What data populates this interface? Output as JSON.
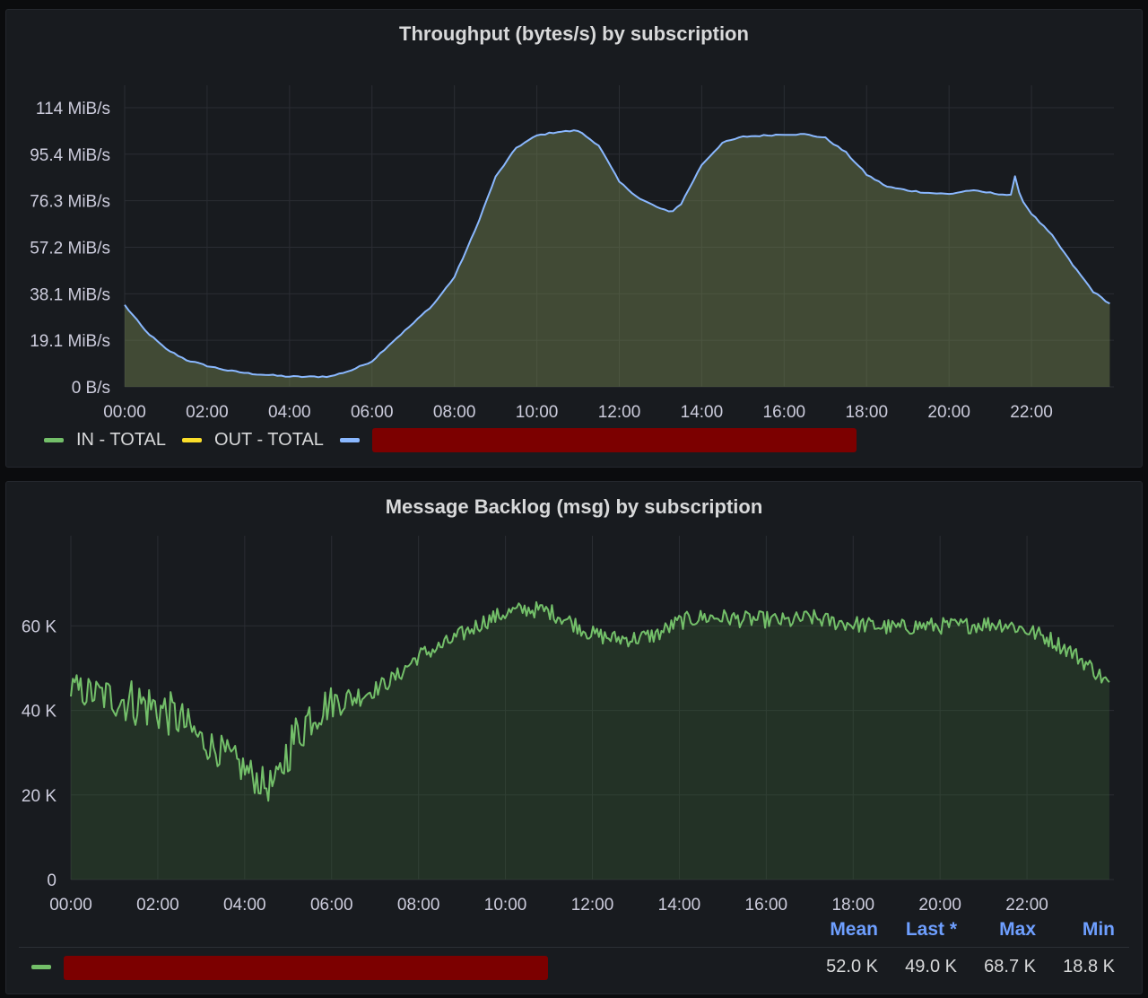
{
  "panels": [
    {
      "title": "Throughput (bytes/s) by subscription",
      "legend": [
        {
          "label": "IN - TOTAL",
          "color": "#73bf69"
        },
        {
          "label": "OUT - TOTAL",
          "color": "#fade2a"
        },
        {
          "label": "",
          "color": "#8ab8ff",
          "redacted": true
        }
      ]
    },
    {
      "title": "Message Backlog (msg) by subscription",
      "stats_headers": [
        "Mean",
        "Last *",
        "Max",
        "Min"
      ],
      "legend_row": {
        "color": "#73bf69",
        "redacted": true,
        "mean": "52.0 K",
        "last": "49.0 K",
        "max": "68.7 K",
        "min": "18.8 K"
      }
    }
  ],
  "chart_data": [
    {
      "type": "area",
      "title": "Throughput (bytes/s) by subscription",
      "xlabel": "",
      "ylabel": "",
      "x_ticks": [
        "00:00",
        "02:00",
        "04:00",
        "06:00",
        "08:00",
        "10:00",
        "12:00",
        "14:00",
        "16:00",
        "18:00",
        "20:00",
        "22:00"
      ],
      "y_ticks": [
        "0 B/s",
        "19.1 MiB/s",
        "38.1 MiB/s",
        "57.2 MiB/s",
        "76.3 MiB/s",
        "95.4 MiB/s",
        "114 MiB/s"
      ],
      "ylim": [
        0,
        114.4
      ],
      "y_unit": "MiB/s",
      "grid": true,
      "legend_position": "bottom-left",
      "series": [
        {
          "label": "(redacted)",
          "color": "#8ab8ff",
          "x_hours": [
            0,
            0.5,
            1,
            1.5,
            2,
            2.5,
            3,
            3.5,
            4,
            4.5,
            5,
            5.5,
            6,
            6.5,
            7,
            7.5,
            8,
            8.5,
            9,
            9.5,
            10,
            10.5,
            11,
            11.5,
            12,
            12.5,
            13,
            13.25,
            13.5,
            14,
            14.5,
            15,
            15.5,
            16,
            16.5,
            17,
            17.5,
            18,
            18.5,
            19,
            19.5,
            20,
            20.5,
            21,
            21.5,
            21.6,
            21.75,
            22,
            22.5,
            23,
            23.5,
            23.9
          ],
          "values": [
            33.5,
            23,
            15.5,
            11,
            8.6,
            6.7,
            5.5,
            4.8,
            4.2,
            4.1,
            4.3,
            6.8,
            10.5,
            18.5,
            26,
            34,
            45,
            64,
            86,
            98,
            103,
            104.5,
            105,
            99,
            84,
            77,
            73,
            71.5,
            75,
            91,
            100,
            102.5,
            103,
            103.5,
            103.5,
            102,
            96,
            87,
            82,
            80.5,
            79.5,
            79,
            80.5,
            79.5,
            78.5,
            86,
            77,
            71,
            62,
            50,
            39,
            34
          ]
        }
      ]
    },
    {
      "type": "area",
      "title": "Message Backlog (msg) by subscription",
      "xlabel": "",
      "ylabel": "",
      "x_ticks": [
        "00:00",
        "02:00",
        "04:00",
        "06:00",
        "08:00",
        "10:00",
        "12:00",
        "14:00",
        "16:00",
        "18:00",
        "20:00",
        "22:00"
      ],
      "y_ticks": [
        "0",
        "20 K",
        "40 K",
        "60 K"
      ],
      "ylim": [
        0,
        76
      ],
      "y_unit": "K",
      "grid": true,
      "legend_position": "bottom-table",
      "series": [
        {
          "label": "(redacted)",
          "color": "#73bf69",
          "x_hours": [
            0,
            0.5,
            1,
            1.5,
            2,
            2.5,
            3,
            3.5,
            4,
            4.25,
            4.5,
            4.75,
            5,
            5.5,
            6,
            6.5,
            7,
            7.5,
            8,
            8.5,
            9,
            9.5,
            10,
            10.5,
            11,
            11.5,
            12,
            12.5,
            13,
            13.5,
            14,
            14.5,
            15,
            15.5,
            16,
            16.5,
            17,
            17.5,
            18,
            18.5,
            19,
            19.5,
            20,
            20.5,
            21,
            21.5,
            22,
            22.5,
            23,
            23.5,
            23.9
          ],
          "values": [
            45,
            44,
            43,
            42,
            40.5,
            38,
            33,
            30,
            26,
            24,
            22,
            23,
            31,
            39,
            42,
            43,
            45,
            48,
            53,
            55,
            58,
            61,
            63,
            64,
            63.5,
            61,
            58,
            57,
            57,
            58,
            61,
            62,
            62,
            61.5,
            61.5,
            61,
            62,
            61,
            60.5,
            60,
            59.5,
            60,
            60,
            60,
            60.5,
            60.5,
            59,
            57,
            54,
            50,
            46
          ],
          "noise_amplitude_k": [
            4,
            4,
            5,
            6,
            6,
            5,
            4,
            4,
            4,
            4,
            4,
            4,
            6,
            6,
            4,
            3,
            2,
            2,
            2,
            2,
            2,
            2,
            2,
            2,
            2,
            2,
            2,
            2,
            2,
            2,
            2,
            2,
            2,
            2,
            2,
            2,
            2,
            2,
            2,
            2,
            2,
            2,
            2,
            2,
            2,
            2,
            2,
            2,
            2,
            2,
            2
          ],
          "stats": {
            "mean": "52.0 K",
            "last": "49.0 K",
            "max": "68.7 K",
            "min": "18.8 K"
          }
        }
      ]
    }
  ]
}
